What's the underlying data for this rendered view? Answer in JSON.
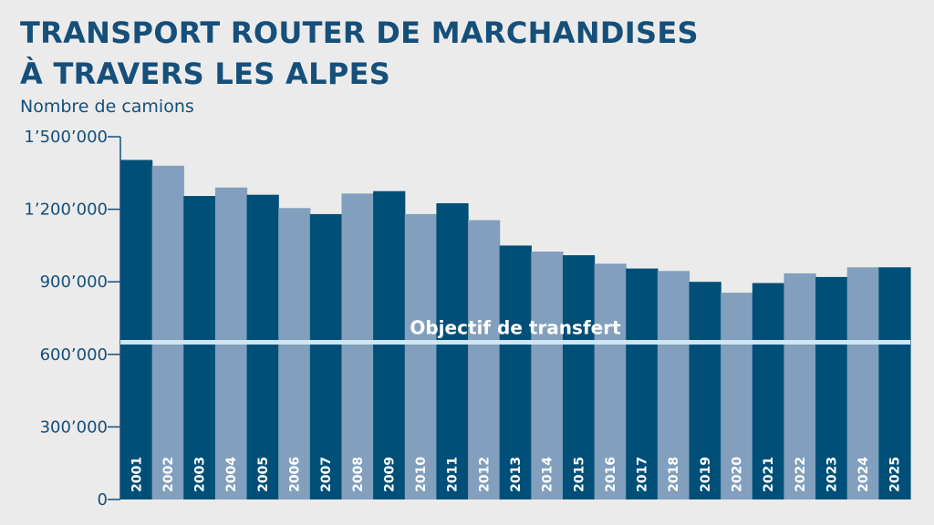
{
  "title_lines": [
    "TRANSPORT ROUTER DE MARCHANDISES",
    "À TRAVERS LES ALPES"
  ],
  "unit_label": "Nombre de camions",
  "target_label": "Objectif de transfert",
  "colors": {
    "title": "#154f7a",
    "bar_dark": "#004f78",
    "bar_light": "#829fbd",
    "target_line": "#cfe6f3",
    "background": "#ebebeb"
  },
  "chart_data": {
    "type": "bar",
    "title": "TRANSPORT ROUTER DE MARCHANDISES À TRAVERS LES ALPES",
    "ylabel": "Nombre de camions",
    "categories": [
      "2001",
      "2002",
      "2003",
      "2004",
      "2005",
      "2006",
      "2007",
      "2008",
      "2009",
      "2010",
      "2011",
      "2012",
      "2013",
      "2014",
      "2015",
      "2016",
      "2017",
      "2018",
      "2019",
      "2020",
      "2021",
      "2022",
      "2023",
      "2024",
      "2025"
    ],
    "values": [
      1404000,
      1380000,
      1255000,
      1290000,
      1260000,
      1205000,
      1180000,
      1265000,
      1275000,
      1180000,
      1225000,
      1155000,
      1050000,
      1025000,
      1010000,
      975000,
      955000,
      945000,
      900000,
      855000,
      895000,
      935000,
      920000,
      960000,
      960000
    ],
    "ylim": [
      0,
      1500000
    ],
    "yticks": [
      0,
      300000,
      600000,
      900000,
      1200000,
      1500000
    ],
    "ytick_labels": [
      "0",
      "300’000",
      "600’000",
      "900’000",
      "1’200’000",
      "1’500’000"
    ],
    "target_value": 650000,
    "grid": false,
    "legend": "none"
  }
}
